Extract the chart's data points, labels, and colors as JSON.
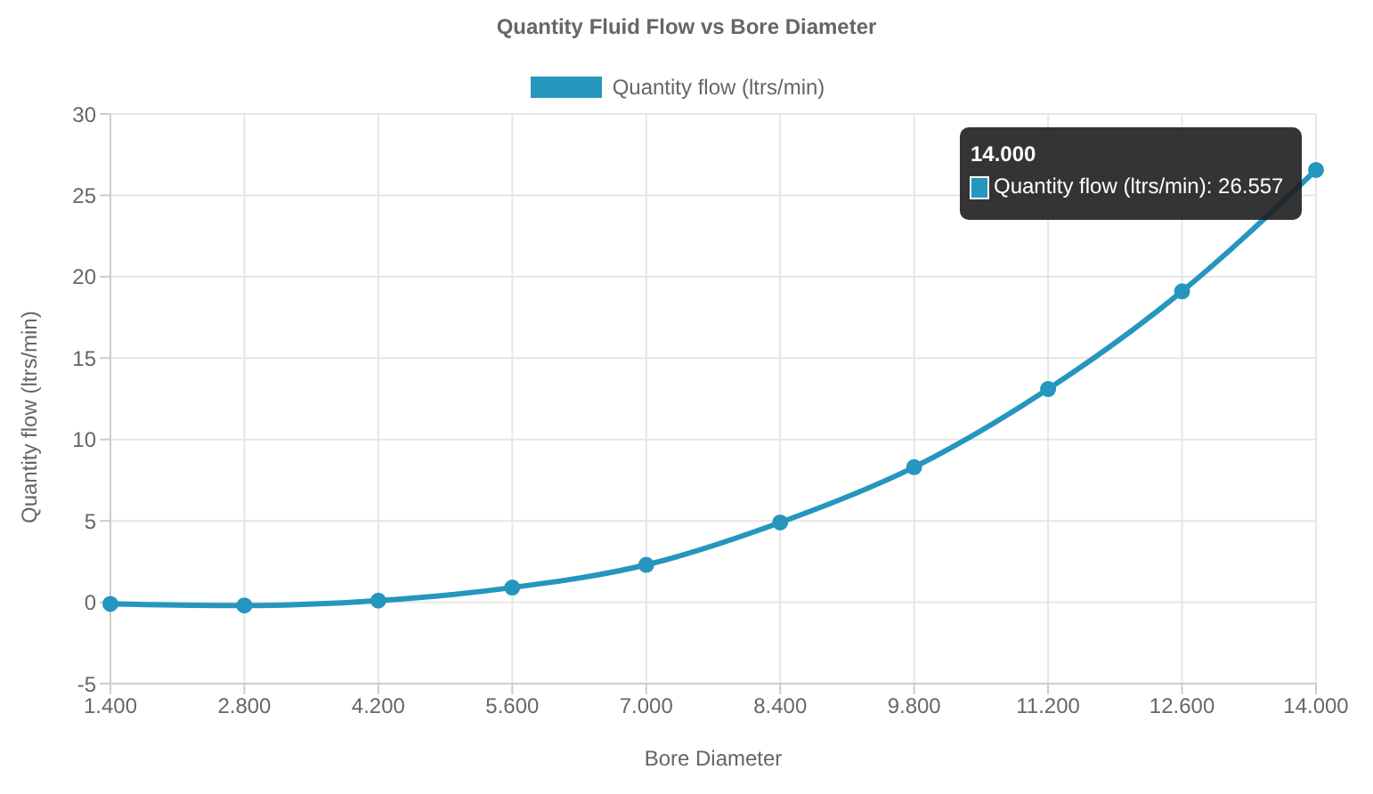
{
  "chart_data": {
    "type": "line",
    "title": "Quantity Fluid Flow vs Bore Diameter",
    "xlabel": "Bore Diameter",
    "ylabel": "Quantity flow (ltrs/min)",
    "categories": [
      "1.400",
      "2.800",
      "4.200",
      "5.600",
      "7.000",
      "8.400",
      "9.800",
      "11.200",
      "12.600",
      "14.000"
    ],
    "series": [
      {
        "name": "Quantity flow (ltrs/min)",
        "color": "#2596be",
        "values": [
          -0.1,
          -0.2,
          0.1,
          0.9,
          2.3,
          4.9,
          8.3,
          13.1,
          19.1,
          26.557
        ]
      }
    ],
    "ylim": [
      -5,
      30
    ],
    "yticks": [
      -5,
      0,
      5,
      10,
      15,
      20,
      25,
      30
    ],
    "grid": true,
    "legend": "top",
    "marker": "circle",
    "line_style": "solid",
    "annotations": [
      "14.000",
      "Quantity flow (ltrs/min): 26.557"
    ]
  }
}
